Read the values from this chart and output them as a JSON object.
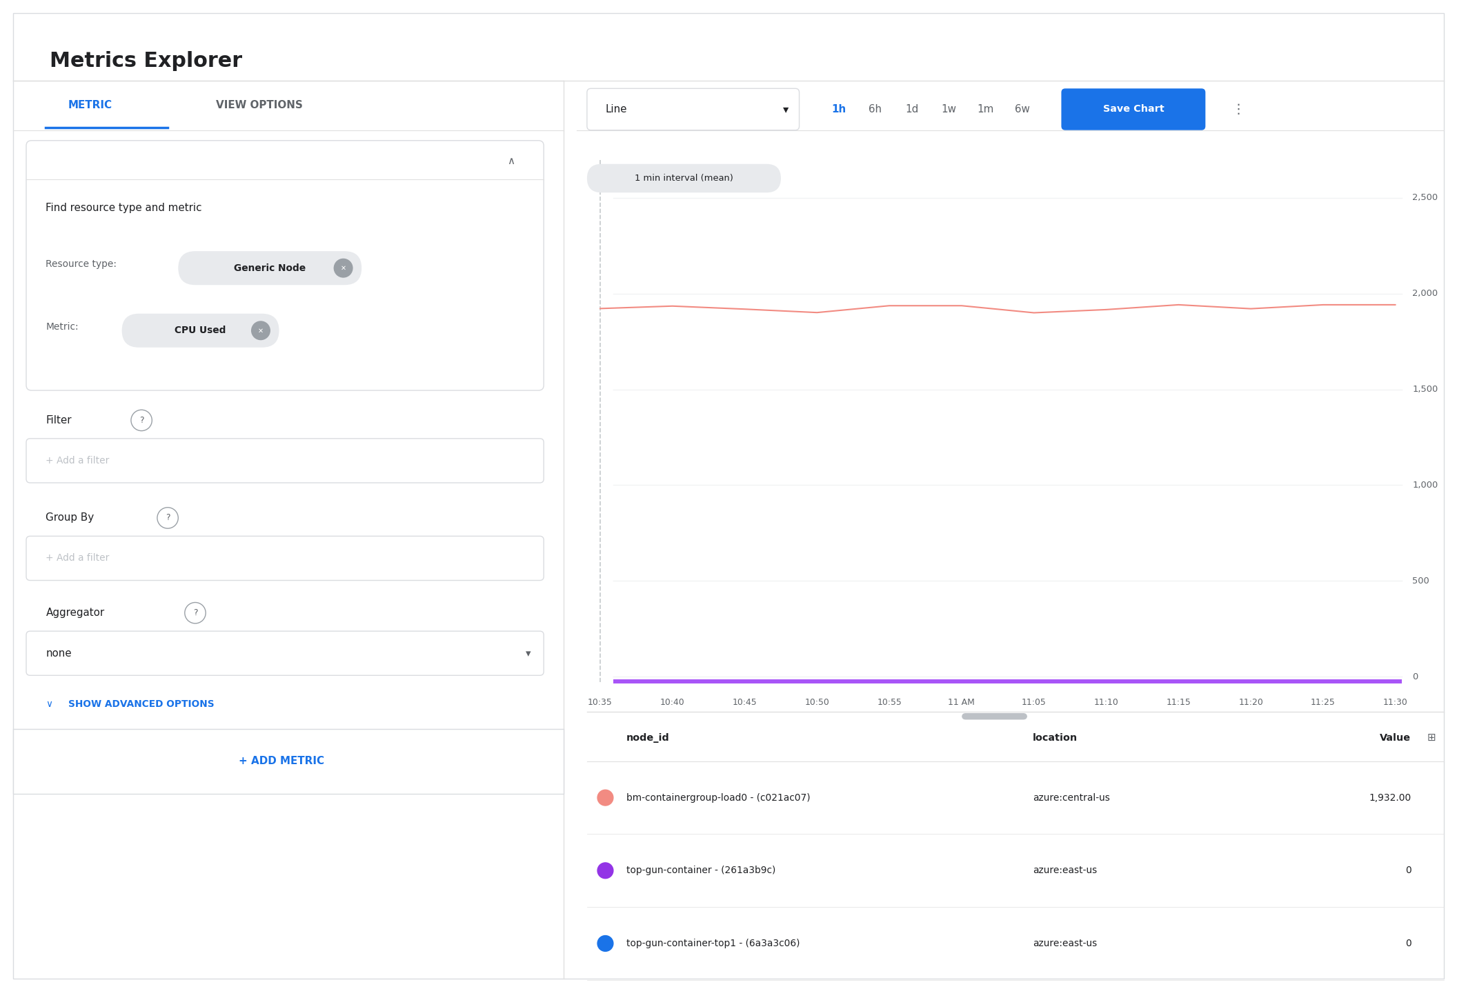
{
  "title": "Metrics Explorer",
  "bg_color": "#ffffff",
  "tab_metric": "METRIC",
  "tab_view_options": "VIEW OPTIONS",
  "tab_active_color": "#1a73e8",
  "tab_inactive_color": "#5f6368",
  "section_find_resource": "Find resource type and metric",
  "resource_type_label": "Resource type:",
  "resource_type_chip": "Generic Node",
  "metric_label": "Metric:",
  "metric_chip": "CPU Used",
  "filter_label": "Filter",
  "filter_placeholder": "+ Add a filter",
  "groupby_label": "Group By",
  "groupby_placeholder": "+ Add a filter",
  "aggregator_label": "Aggregator",
  "aggregator_value": "none",
  "show_advanced": "SHOW ADVANCED OPTIONS",
  "add_metric": "+ ADD METRIC",
  "chart_type": "Line",
  "time_buttons": [
    "1h",
    "6h",
    "1d",
    "1w",
    "1m",
    "6w"
  ],
  "time_active": "1h",
  "save_chart_btn": "Save Chart",
  "interval_label": "1 min interval (mean)",
  "y_ticks": [
    0,
    500,
    1000,
    1500,
    2000,
    2500
  ],
  "x_labels": [
    "10:35",
    "10:40",
    "10:45",
    "10:50",
    "10:55",
    "11 AM",
    "11:05",
    "11:10",
    "11:15",
    "11:20",
    "11:25",
    "11:30"
  ],
  "line_color": "#f28b82",
  "line_value": 1932.0,
  "dashed_line_color": "#c5c9cc",
  "table_headers": [
    "node_id",
    "location",
    "Value"
  ],
  "table_rows": [
    {
      "dot_color": "#f28b82",
      "node_id": "bm-containergroup-load0 - (c021ac07)",
      "location": "azure:central-us",
      "value": "1,932.00"
    },
    {
      "dot_color": "#9334e6",
      "node_id": "top-gun-container - (261a3b9c)",
      "location": "azure:east-us",
      "value": "0"
    },
    {
      "dot_color": "#1a73e8",
      "node_id": "top-gun-container-top1 - (6a3a3c06)",
      "location": "azure:east-us",
      "value": "0"
    }
  ],
  "divider_color": "#e0e0e0",
  "panel_border_color": "#dadce0",
  "chip_bg_color": "#e8eaed",
  "input_border_color": "#dadce0",
  "gray_bg": "#f1f3f4"
}
